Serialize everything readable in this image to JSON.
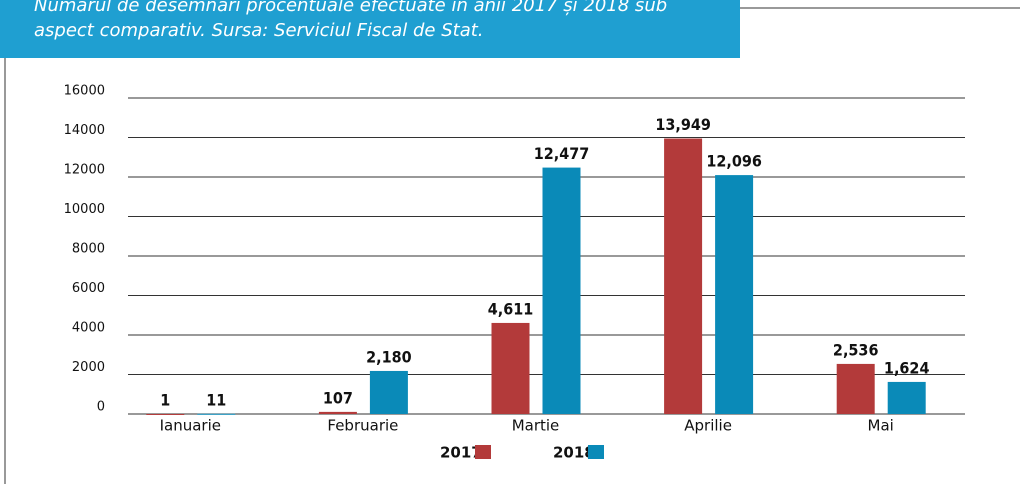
{
  "header": {
    "lines": [
      "Numărul de desemnări procentuale efectuate în anii 2017 și 2018 sub",
      "aspect comparativ. Sursa: Serviciul Fiscal de Stat."
    ]
  },
  "chart_data": {
    "type": "bar",
    "categories": [
      "Ianuarie",
      "Februarie",
      "Martie",
      "Aprilie",
      "Mai"
    ],
    "series": [
      {
        "name": "2017",
        "color": "#b33a3a",
        "values": [
          1,
          107,
          4611,
          13949,
          2536
        ],
        "value_labels": [
          "1",
          "107",
          "4,611",
          "13,949",
          "2,536"
        ]
      },
      {
        "name": "2018",
        "color": "#0a8ab8",
        "values": [
          11,
          2180,
          12477,
          12096,
          1624
        ],
        "value_labels": [
          "11",
          "2,180",
          "12,477",
          "12,096",
          "1,624"
        ]
      }
    ],
    "ylim": [
      0,
      16000
    ],
    "yticks": [
      0,
      2000,
      4000,
      6000,
      8000,
      10000,
      12000,
      14000,
      16000
    ],
    "grid": true,
    "legend": "bottom"
  }
}
